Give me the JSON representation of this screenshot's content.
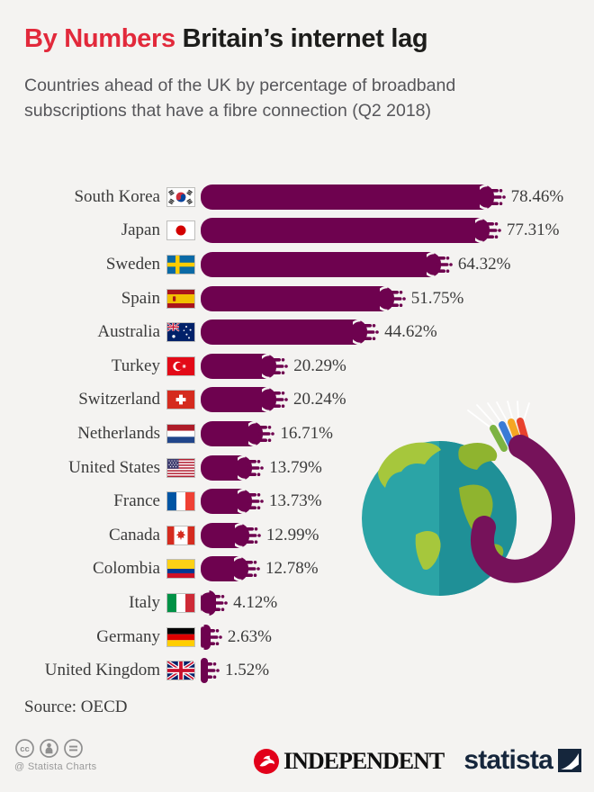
{
  "header": {
    "kicker": "By Numbers",
    "title": "Britain’s internet lag",
    "subtitle": "Countries ahead of the UK by percentage of broadband subscriptions that have a fibre connection (Q2 2018)"
  },
  "chart_data": {
    "type": "bar",
    "orientation": "horizontal",
    "unit": "%",
    "title": "Countries ahead of the UK by percentage of broadband subscriptions that have a fibre connection (Q2 2018)",
    "xlim": [
      0,
      80
    ],
    "grid": false,
    "bar_color": "#6e024f",
    "categories": [
      "South Korea",
      "Japan",
      "Sweden",
      "Spain",
      "Australia",
      "Turkey",
      "Switzerland",
      "Netherlands",
      "United States",
      "France",
      "Canada",
      "Colombia",
      "Italy",
      "Germany",
      "United Kingdom"
    ],
    "values": [
      78.46,
      77.31,
      64.32,
      51.75,
      44.62,
      20.29,
      20.24,
      16.71,
      13.79,
      13.73,
      12.99,
      12.78,
      4.12,
      2.63,
      1.52
    ],
    "value_labels": [
      "78.46%",
      "77.31%",
      "64.32%",
      "51.75%",
      "44.62%",
      "20.29%",
      "20.24%",
      "16.71%",
      "13.79%",
      "13.73%",
      "12.99%",
      "12.78%",
      "4.12%",
      "2.63%",
      "1.52%"
    ],
    "flags": [
      "south-korea",
      "japan",
      "sweden",
      "spain",
      "australia",
      "turkey",
      "switzerland",
      "netherlands",
      "united-states",
      "france",
      "canada",
      "colombia",
      "italy",
      "germany",
      "united-kingdom"
    ]
  },
  "source": "Source: OECD",
  "footer": {
    "cc_caption": "@ Statista Charts",
    "cc_icons": [
      "cc-license-icon",
      "attribution-icon",
      "no-derivatives-icon"
    ],
    "publisher": "INDEPENDENT",
    "brand": "statista"
  },
  "colors": {
    "background": "#f4f3f1",
    "bar": "#6e024f",
    "accent_red": "#e2293b",
    "independent_red": "#e2001a",
    "statista_navy": "#15263c",
    "globe_ocean": "#2ba4a6",
    "globe_land": "#a6c73c",
    "cable_purple": "#76125a"
  }
}
